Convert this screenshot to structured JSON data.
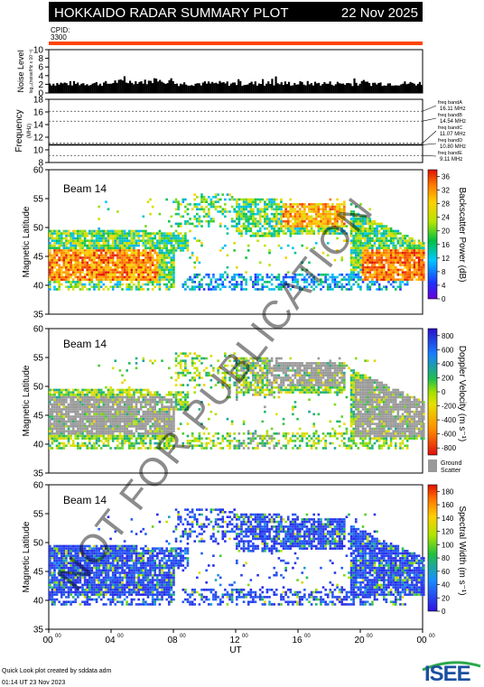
{
  "header": {
    "title": "HOKKAIDO RADAR SUMMARY PLOT",
    "date": "22 Nov 2025",
    "cpid_label": "CPID:",
    "cpid_value": "3300"
  },
  "footer": {
    "line1": "Quick Look plot created by sddata adm",
    "line2": "01:14 UT 23 Nov 2023",
    "logo_text": "ISEE"
  },
  "watermark": "NOT FOR PUBLICATION",
  "colors": {
    "title_bg": "#000000",
    "title_fg": "#ffffff",
    "cpid_bar": "#ff4500",
    "ground_scatter": "#999999",
    "logo_green": "#2aa84a",
    "logo_blue": "#1a4fa0"
  },
  "chart_data": [
    {
      "type": "bar",
      "panel": "noise",
      "ylabel": "Noise Level",
      "ylabel_sub": "log₁₀(noise/Hz x 10⁻⁶)",
      "yticks": [
        "0",
        "2",
        "4",
        "6",
        "8",
        "10"
      ],
      "ylim": [
        0,
        10
      ],
      "xlim": [
        0,
        24
      ],
      "description_values": "Noise level fluctuates between about 1.5 and 3 throughout the day"
    },
    {
      "type": "line",
      "panel": "frequency",
      "ylabel": "Frequency",
      "ylabel_unit": "(MHz)",
      "yticks": [
        "8",
        "10",
        "12",
        "14",
        "16",
        "18"
      ],
      "ylim": [
        8,
        18
      ],
      "xlim": [
        0,
        24
      ],
      "bands": [
        {
          "name": "freq bandA",
          "freq": "16.11 MHz",
          "value": 16.11
        },
        {
          "name": "freq bandB",
          "freq": "14.54 MHz",
          "value": 14.54
        },
        {
          "name": "freq bandC",
          "freq": "11.07 MHz",
          "value": 11.07
        },
        {
          "name": "freq bandD",
          "freq": "10.80 MHz",
          "value": 10.8
        },
        {
          "name": "freq bandE",
          "freq": "9.11 MHz",
          "value": 9.11
        }
      ],
      "series": [
        {
          "values": [
            {
              "x": 0,
              "y": 10.8
            },
            {
              "x": 24,
              "y": 10.8
            }
          ]
        }
      ]
    },
    {
      "type": "heatmap",
      "panel": "power",
      "beam_label": "Beam 14",
      "ylabel": "Magnetic Latitude",
      "yticks": [
        "35",
        "40",
        "45",
        "50",
        "55",
        "60"
      ],
      "ylim": [
        35,
        60
      ],
      "xlim": [
        0,
        24
      ],
      "colorbar_label": "Backscatter Power (dB)",
      "colorbar_ticks": [
        "0",
        "4",
        "8",
        "12",
        "16",
        "20",
        "24",
        "28",
        "32",
        "36"
      ],
      "colorbar_range": [
        0,
        38
      ]
    },
    {
      "type": "heatmap",
      "panel": "velocity",
      "beam_label": "Beam 14",
      "ylabel": "Magnetic Latitude",
      "yticks": [
        "35",
        "40",
        "45",
        "50",
        "55",
        "60"
      ],
      "ylim": [
        35,
        60
      ],
      "xlim": [
        0,
        24
      ],
      "colorbar_label": "Doppler Velocity (m s⁻¹)",
      "colorbar_ticks": [
        "800",
        "600",
        "400",
        "200",
        "0",
        "-200",
        "-400",
        "-600",
        "-800"
      ],
      "colorbar_range": [
        -900,
        900
      ],
      "ground_scatter_label": [
        "Ground",
        "Scatter"
      ]
    },
    {
      "type": "heatmap",
      "panel": "width",
      "beam_label": "Beam 14",
      "ylabel": "Magnetic Latitude",
      "yticks": [
        "35",
        "40",
        "45",
        "50",
        "55",
        "60"
      ],
      "ylim": [
        35,
        60
      ],
      "xlim": [
        0,
        24
      ],
      "colorbar_label": "Spectral Width (m s⁻¹)",
      "colorbar_ticks": [
        "0",
        "20",
        "40",
        "60",
        "80",
        "100",
        "120",
        "140",
        "160",
        "180"
      ],
      "colorbar_range": [
        0,
        190
      ],
      "xlabel": "UT",
      "xticks": [
        {
          "v": 0,
          "h": "00",
          "m": "00"
        },
        {
          "v": 4,
          "h": "04",
          "m": "00"
        },
        {
          "v": 8,
          "h": "08",
          "m": "00"
        },
        {
          "v": 12,
          "h": "12",
          "m": "00"
        },
        {
          "v": 16,
          "h": "16",
          "m": "00"
        },
        {
          "v": 20,
          "h": "20",
          "m": "00"
        },
        {
          "v": 24,
          "h": "00",
          "m": "00"
        }
      ]
    }
  ]
}
